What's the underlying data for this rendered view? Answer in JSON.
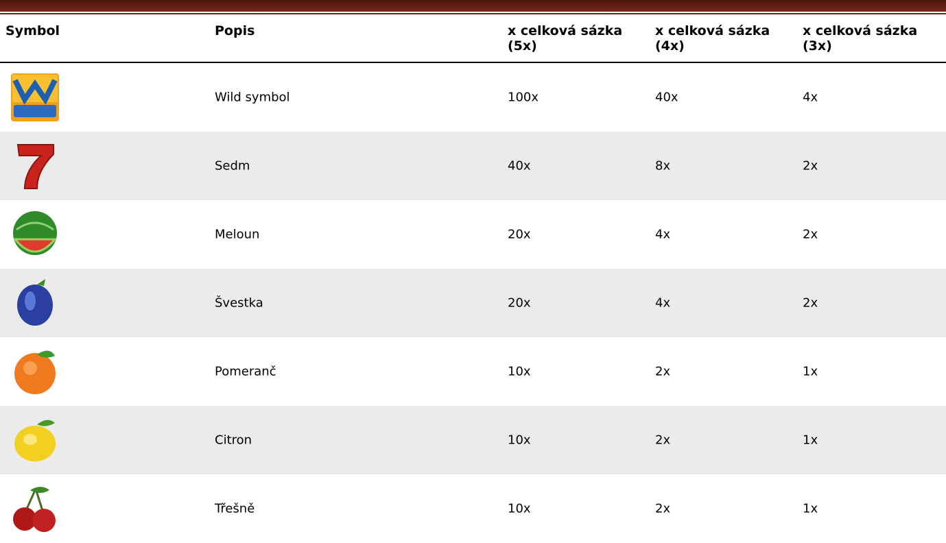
{
  "table": {
    "headers": [
      "Symbol",
      "Popis",
      "x celková sázka (5x)",
      "x celková sázka (4x)",
      "x celková sázka (3x)"
    ],
    "rows": [
      {
        "description": "Wild symbol",
        "payouts": [
          "100x",
          "40x",
          "4x"
        ]
      },
      {
        "description": "Sedm",
        "payouts": [
          "40x",
          "8x",
          "2x"
        ]
      },
      {
        "description": "Meloun",
        "payouts": [
          "20x",
          "4x",
          "2x"
        ]
      },
      {
        "description": "Švestka",
        "payouts": [
          "20x",
          "4x",
          "2x"
        ]
      },
      {
        "description": "Pomeranč",
        "payouts": [
          "10x",
          "2x",
          "1x"
        ]
      },
      {
        "description": "Citron",
        "payouts": [
          "10x",
          "2x",
          "1x"
        ]
      },
      {
        "description": "Třešně",
        "payouts": [
          "10x",
          "2x",
          "1x"
        ]
      }
    ]
  }
}
